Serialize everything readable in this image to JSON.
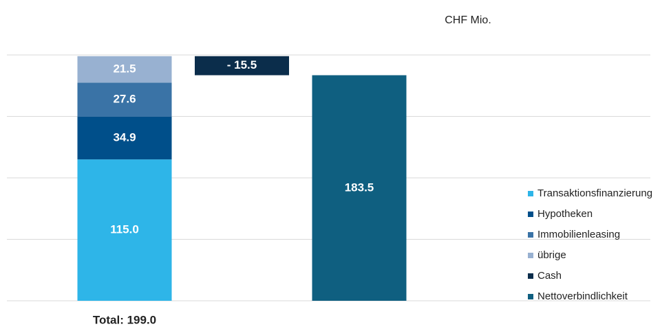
{
  "chart_data": {
    "type": "waterfall",
    "unit": "CHF Mio.",
    "categories": [
      "Total: 199.0",
      null,
      null
    ],
    "series": [
      {
        "name": "Transaktionsfinanzierung",
        "color": "#2eb5e8",
        "values": [
          115.0,
          null,
          null
        ],
        "value_labels": [
          "115.0",
          null,
          null
        ]
      },
      {
        "name": "Hypotheken",
        "color": "#004f8a",
        "values": [
          34.9,
          null,
          null
        ]
      },
      {
        "name": "Immobilienleasing",
        "color": "#3a73a6",
        "values": [
          27.6,
          null,
          null
        ]
      },
      {
        "name": "übrige",
        "color": "#98b1d1",
        "values": [
          21.5,
          null,
          null
        ]
      },
      {
        "name": "Cash",
        "color": "#0b2d4b",
        "values": [
          null,
          -15.5,
          null
        ],
        "value_labels": [
          null,
          "- 15.5",
          null
        ]
      },
      {
        "name": "Nettoverbindlichkeit",
        "color": "#0f5f80",
        "values": [
          null,
          null,
          183.5
        ]
      }
    ],
    "ylim": [
      0,
      200
    ],
    "yticks": [
      0,
      50,
      100,
      150,
      200
    ],
    "grid": true
  }
}
